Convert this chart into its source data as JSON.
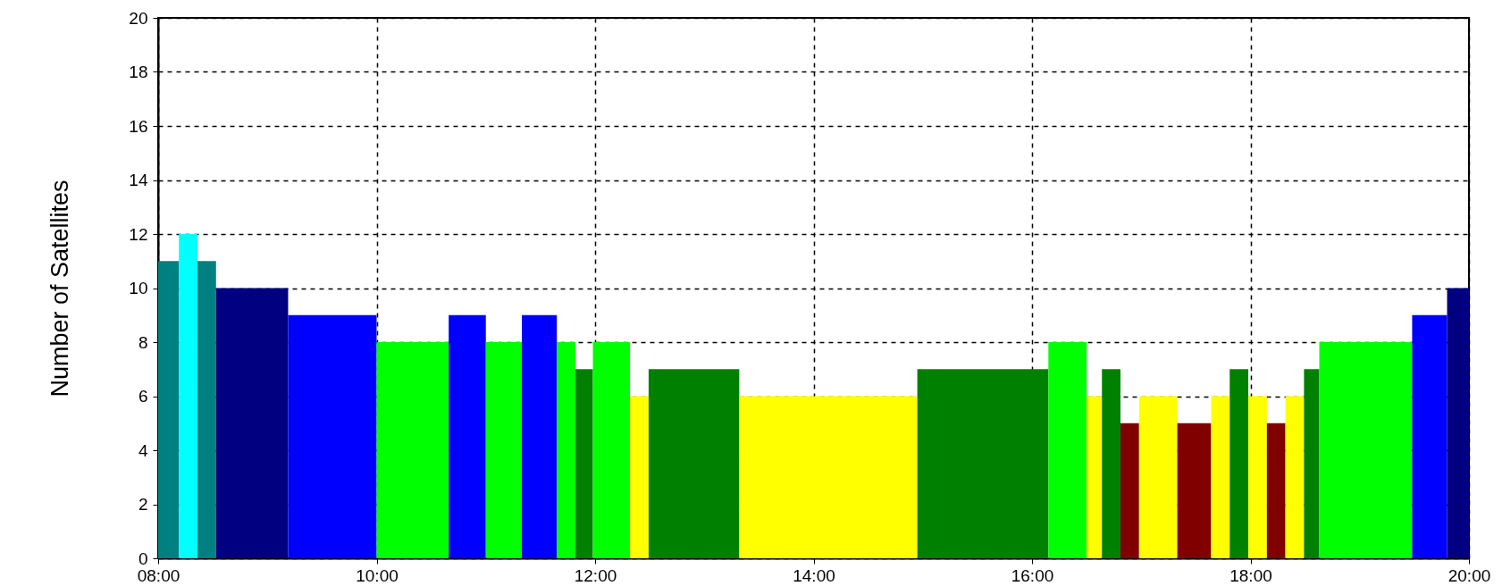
{
  "chart_data": {
    "type": "histogram",
    "ylabel": "Number of Satellites",
    "bins": [
      8,
      8.19,
      8.36,
      8.53,
      9.19,
      10.0,
      10.66,
      11.0,
      11.33,
      11.65,
      11.82,
      11.98,
      12.32,
      12.49,
      13.32,
      14.95,
      16.15,
      16.5,
      16.64,
      16.81,
      16.98,
      17.33,
      17.64,
      17.81,
      17.98,
      18.15,
      18.32,
      18.49,
      18.63,
      19.48,
      19.8,
      20
    ],
    "values": [
      11,
      12,
      11,
      10,
      9,
      8,
      9,
      8,
      9,
      8,
      7,
      8,
      6,
      7,
      6,
      7,
      8,
      6,
      7,
      5,
      6,
      5,
      6,
      7,
      6,
      5,
      6,
      7,
      8,
      9,
      10
    ],
    "colors": [
      "#008080",
      "#00ffff",
      "#008080",
      "#000080",
      "#0000ff",
      "#00ff00",
      "#0000ff",
      "#00ff00",
      "#0000ff",
      "#00ff00",
      "#008000",
      "#00ff00",
      "#ffff00",
      "#008000",
      "#ffff00",
      "#008000",
      "#00ff00",
      "#ffff00",
      "#008000",
      "#800000",
      "#ffff00",
      "#800000",
      "#ffff00",
      "#008000",
      "#ffff00",
      "#800000",
      "#ffff00",
      "#008000",
      "#00ff00",
      "#0000ff",
      "#000080"
    ],
    "xlim": [
      8,
      20
    ],
    "xticks": [
      {
        "value": 8,
        "label": "08:00"
      },
      {
        "value": 10,
        "label": "10:00"
      },
      {
        "value": 12,
        "label": "12:00"
      },
      {
        "value": 14,
        "label": "14:00"
      },
      {
        "value": 16,
        "label": "16:00"
      },
      {
        "value": 18,
        "label": "18:00"
      },
      {
        "value": 20,
        "label": "20:00"
      }
    ],
    "ylim": [
      0,
      20
    ],
    "yticks": [
      0,
      2,
      4,
      6,
      8,
      10,
      12,
      14,
      16,
      18,
      20
    ],
    "grid": true
  }
}
